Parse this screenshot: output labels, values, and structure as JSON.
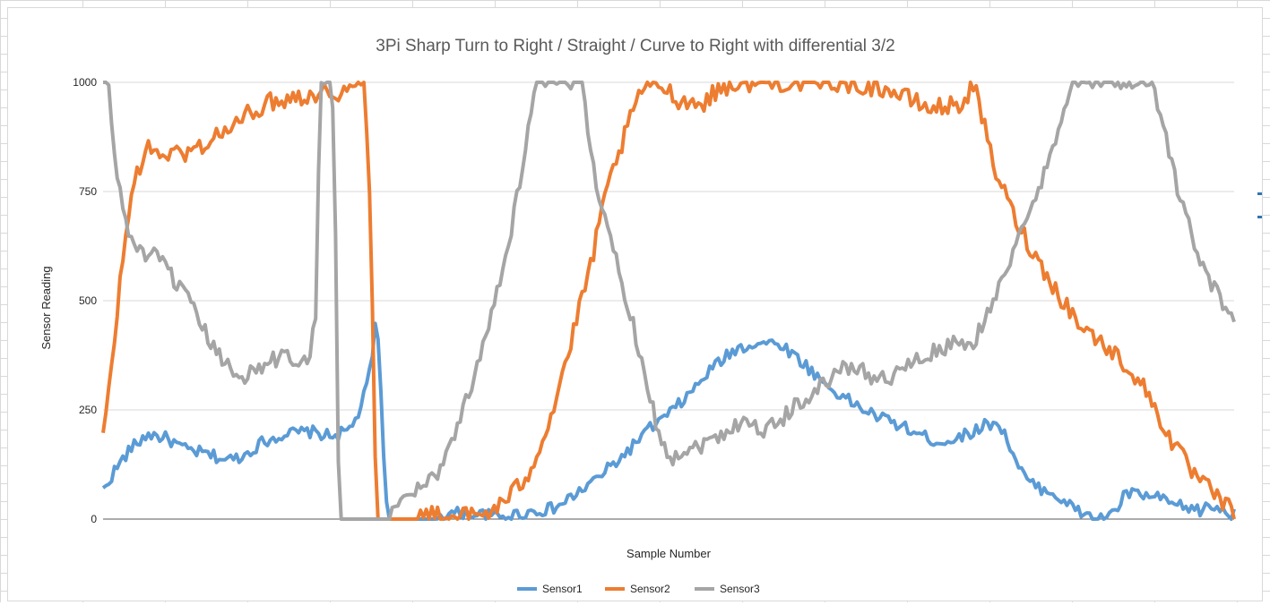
{
  "colors": {
    "sensor1": "#5b9bd5",
    "sensor2": "#ed7d31",
    "sensor3": "#a5a5a5",
    "gridline": "#d9d9d9",
    "axis_text": "#595959",
    "title_text": "#595959"
  },
  "chart_data": {
    "type": "line",
    "title": "3Pi Sharp Turn to Right / Straight / Curve to Right with differential 3/2",
    "xlabel": "Sample Number",
    "ylabel": "Sensor Reading",
    "ylim": [
      0,
      1000
    ],
    "yticks": [
      0,
      250,
      500,
      750,
      1000
    ],
    "grid": "horizontal",
    "legend_position": "bottom",
    "x_count": 400,
    "series": [
      {
        "name": "Sensor1",
        "color": "#5b9bd5",
        "keypoints": [
          [
            0,
            65
          ],
          [
            5,
            110
          ],
          [
            12,
            160
          ],
          [
            20,
            195
          ],
          [
            28,
            185
          ],
          [
            36,
            160
          ],
          [
            45,
            150
          ],
          [
            55,
            135
          ],
          [
            62,
            145
          ],
          [
            70,
            175
          ],
          [
            80,
            195
          ],
          [
            92,
            200
          ],
          [
            100,
            190
          ],
          [
            108,
            200
          ],
          [
            112,
            230
          ],
          [
            116,
            290
          ],
          [
            119,
            365
          ],
          [
            120,
            470
          ],
          [
            122,
            380
          ],
          [
            124,
            150
          ],
          [
            126,
            0
          ],
          [
            144,
            0
          ],
          [
            150,
            10
          ],
          [
            160,
            15
          ],
          [
            175,
            5
          ],
          [
            200,
            25
          ],
          [
            210,
            60
          ],
          [
            220,
            100
          ],
          [
            230,
            145
          ],
          [
            240,
            200
          ],
          [
            250,
            240
          ],
          [
            260,
            290
          ],
          [
            270,
            350
          ],
          [
            280,
            390
          ],
          [
            290,
            405
          ],
          [
            300,
            400
          ],
          [
            310,
            355
          ],
          [
            320,
            305
          ],
          [
            330,
            270
          ],
          [
            340,
            240
          ],
          [
            350,
            220
          ],
          [
            360,
            195
          ],
          [
            370,
            175
          ],
          [
            380,
            190
          ],
          [
            390,
            215
          ],
          [
            395,
            225
          ],
          [
            400,
            180
          ],
          [
            405,
            115
          ],
          [
            410,
            80
          ],
          [
            420,
            60
          ],
          [
            430,
            20
          ],
          [
            440,
            0
          ],
          [
            448,
            20
          ],
          [
            452,
            60
          ],
          [
            465,
            50
          ],
          [
            475,
            30
          ],
          [
            485,
            20
          ],
          [
            490,
            30
          ],
          [
            500,
            10
          ]
        ],
        "noise": 14
      },
      {
        "name": "Sensor2",
        "color": "#ed7d31",
        "keypoints": [
          [
            0,
            190
          ],
          [
            3,
            300
          ],
          [
            6,
            450
          ],
          [
            9,
            600
          ],
          [
            12,
            700
          ],
          [
            15,
            790
          ],
          [
            20,
            845
          ],
          [
            30,
            835
          ],
          [
            40,
            840
          ],
          [
            50,
            870
          ],
          [
            60,
            900
          ],
          [
            70,
            940
          ],
          [
            80,
            960
          ],
          [
            90,
            970
          ],
          [
            100,
            975
          ],
          [
            110,
            980
          ],
          [
            115,
            985
          ],
          [
            118,
            995
          ],
          [
            120,
            1000
          ],
          [
            123,
            720
          ],
          [
            125,
            180
          ],
          [
            126,
            0
          ],
          [
            144,
            0
          ],
          [
            150,
            10
          ],
          [
            160,
            5
          ],
          [
            175,
            10
          ],
          [
            185,
            40
          ],
          [
            195,
            100
          ],
          [
            205,
            220
          ],
          [
            215,
            400
          ],
          [
            225,
            600
          ],
          [
            232,
            760
          ],
          [
            240,
            880
          ],
          [
            248,
            990
          ],
          [
            255,
            1000
          ],
          [
            265,
            960
          ],
          [
            275,
            950
          ],
          [
            285,
            990
          ],
          [
            295,
            1000
          ],
          [
            340,
            1000
          ],
          [
            360,
            985
          ],
          [
            380,
            940
          ],
          [
            395,
            950
          ],
          [
            400,
            1000
          ],
          [
            405,
            900
          ],
          [
            410,
            800
          ],
          [
            415,
            740
          ],
          [
            420,
            680
          ],
          [
            430,
            590
          ],
          [
            440,
            510
          ],
          [
            450,
            440
          ],
          [
            460,
            400
          ],
          [
            470,
            355
          ],
          [
            480,
            290
          ],
          [
            490,
            190
          ],
          [
            500,
            110
          ],
          [
            508,
            70
          ],
          [
            515,
            35
          ],
          [
            520,
            15
          ]
        ],
        "noise": 22
      },
      {
        "name": "Sensor3",
        "color": "#a5a5a5",
        "keypoints": [
          [
            0,
            1000
          ],
          [
            3,
            995
          ],
          [
            6,
            830
          ],
          [
            10,
            720
          ],
          [
            15,
            640
          ],
          [
            20,
            610
          ],
          [
            28,
            600
          ],
          [
            36,
            560
          ],
          [
            45,
            500
          ],
          [
            55,
            420
          ],
          [
            65,
            350
          ],
          [
            75,
            330
          ],
          [
            85,
            350
          ],
          [
            95,
            375
          ],
          [
            105,
            365
          ],
          [
            110,
            380
          ],
          [
            113,
            480
          ],
          [
            115,
            1000
          ],
          [
            121,
            1000
          ],
          [
            123,
            850
          ],
          [
            124,
            200
          ],
          [
            126,
            0
          ],
          [
            150,
            0
          ],
          [
            160,
            55
          ],
          [
            170,
            80
          ],
          [
            178,
            110
          ],
          [
            185,
            180
          ],
          [
            195,
            300
          ],
          [
            205,
            460
          ],
          [
            215,
            620
          ],
          [
            222,
            800
          ],
          [
            230,
            1000
          ],
          [
            255,
            1000
          ],
          [
            258,
            860
          ],
          [
            265,
            700
          ],
          [
            275,
            550
          ],
          [
            285,
            380
          ],
          [
            295,
            190
          ],
          [
            300,
            140
          ],
          [
            310,
            160
          ],
          [
            320,
            175
          ],
          [
            330,
            200
          ],
          [
            340,
            230
          ],
          [
            350,
            200
          ],
          [
            360,
            230
          ],
          [
            370,
            270
          ],
          [
            380,
            300
          ],
          [
            390,
            340
          ],
          [
            400,
            350
          ],
          [
            410,
            320
          ],
          [
            420,
            330
          ],
          [
            430,
            360
          ],
          [
            440,
            380
          ],
          [
            450,
            400
          ],
          [
            460,
            390
          ],
          [
            470,
            480
          ],
          [
            480,
            580
          ],
          [
            490,
            680
          ],
          [
            500,
            800
          ],
          [
            510,
            950
          ],
          [
            515,
            1000
          ],
          [
            545,
            1000
          ],
          [
            555,
            1000
          ],
          [
            562,
            920
          ],
          [
            570,
            750
          ],
          [
            580,
            620
          ],
          [
            590,
            520
          ],
          [
            600,
            470
          ]
        ],
        "noise": 20
      }
    ]
  }
}
